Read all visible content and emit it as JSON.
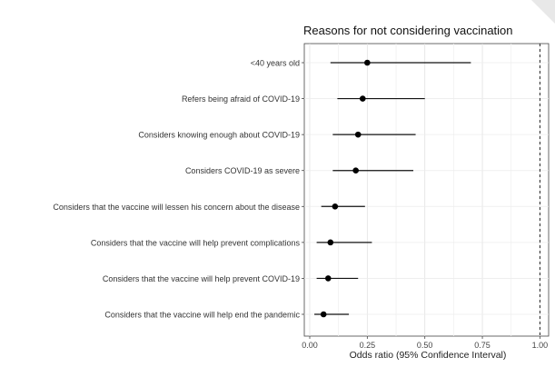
{
  "chart_data": {
    "type": "forest",
    "title": "Reasons for not considering vaccination",
    "xlabel": "Odds ratio (95% Confidence Interval)",
    "ylabel": "",
    "xlim": [
      0,
      1.03
    ],
    "xticks": [
      "0.00",
      "0.25",
      "0.50",
      "0.75",
      "1.00"
    ],
    "xtick_values": [
      0,
      0.25,
      0.5,
      0.75,
      1.0
    ],
    "reference_line": 1.0,
    "grid": true,
    "rows": [
      {
        "label": "<40 years old",
        "or": 0.25,
        "lower": 0.09,
        "upper": 0.7
      },
      {
        "label": "Refers being afraid of COVID-19",
        "or": 0.23,
        "lower": 0.12,
        "upper": 0.5
      },
      {
        "label": "Considers knowing enough about COVID-19",
        "or": 0.21,
        "lower": 0.1,
        "upper": 0.46
      },
      {
        "label": "Considers COVID-19 as severe",
        "or": 0.2,
        "lower": 0.1,
        "upper": 0.45
      },
      {
        "label": "Considers that the vaccine will lessen his concern about the disease",
        "or": 0.11,
        "lower": 0.05,
        "upper": 0.24
      },
      {
        "label": "Considers that the vaccine will help prevent complications",
        "or": 0.09,
        "lower": 0.03,
        "upper": 0.27
      },
      {
        "label": "Considers that the vaccine will help prevent COVID-19",
        "or": 0.08,
        "lower": 0.03,
        "upper": 0.21
      },
      {
        "label": "Considers that the vaccine will help end the pandemic",
        "or": 0.06,
        "lower": 0.02,
        "upper": 0.17
      }
    ]
  }
}
